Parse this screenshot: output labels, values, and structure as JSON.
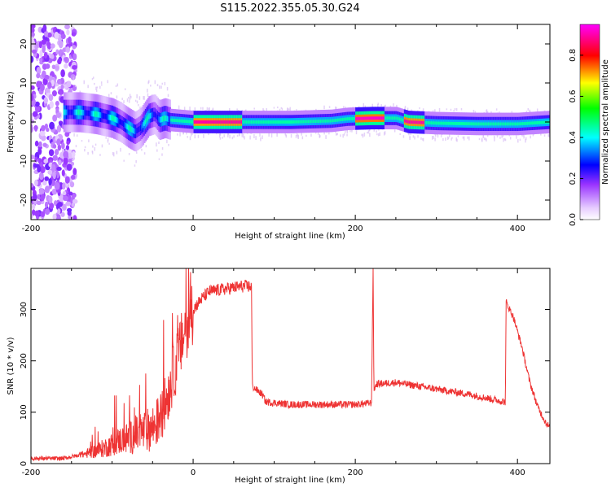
{
  "figure": {
    "title": "S115.2022.355.05.30.G24"
  },
  "chart_data": [
    {
      "type": "heatmap",
      "xlabel": "Height of straight line (km)",
      "ylabel": "Frequency (Hz)",
      "xlim": [
        -200,
        440
      ],
      "ylim": [
        -25,
        25
      ],
      "xticks": [
        -200,
        0,
        200,
        400
      ],
      "yticks": [
        -20,
        -10,
        0,
        10,
        20
      ],
      "colorbar": {
        "label": "Normalized spectral amplitude",
        "range": [
          0,
          0.95
        ],
        "ticks": [
          0.0,
          0.2,
          0.4,
          0.6,
          0.8
        ],
        "tick_labels": [
          "0.0",
          "0.2",
          "0.4",
          "0.6",
          "0.8"
        ],
        "colormap": [
          "#ffffff",
          "#e6ccff",
          "#9933ff",
          "#0000ff",
          "#00ffff",
          "#00ff00",
          "#ffff00",
          "#ff0000",
          "#ff00ff"
        ]
      },
      "ridge": [
        {
          "x": -160,
          "y": 2.5
        },
        {
          "x": -140,
          "y": 2.5
        },
        {
          "x": -120,
          "y": 2.0
        },
        {
          "x": -100,
          "y": 1.0
        },
        {
          "x": -90,
          "y": 0.0
        },
        {
          "x": -80,
          "y": -1.5
        },
        {
          "x": -72,
          "y": -2.5
        },
        {
          "x": -65,
          "y": -1.5
        },
        {
          "x": -55,
          "y": 1.5
        },
        {
          "x": -48,
          "y": 2.0
        },
        {
          "x": -42,
          "y": 0.5
        },
        {
          "x": -35,
          "y": 1.0
        },
        {
          "x": -28,
          "y": 0.5
        },
        {
          "x": 0,
          "y": 0.0
        },
        {
          "x": 60,
          "y": 0.0
        },
        {
          "x": 120,
          "y": 0.0
        },
        {
          "x": 170,
          "y": 0.3
        },
        {
          "x": 190,
          "y": 0.8
        },
        {
          "x": 220,
          "y": 1.0
        },
        {
          "x": 250,
          "y": 1.0
        },
        {
          "x": 265,
          "y": 0.0
        },
        {
          "x": 300,
          "y": -0.3
        },
        {
          "x": 350,
          "y": -0.5
        },
        {
          "x": 400,
          "y": -0.5
        },
        {
          "x": 440,
          "y": 0.0
        }
      ],
      "peak_amplitude_regions": [
        {
          "x_range": [
            0,
            60
          ],
          "amplitude": 0.9
        },
        {
          "x_range": [
            200,
            235
          ],
          "amplitude": 0.92
        },
        {
          "x_range": [
            260,
            285
          ],
          "amplitude": 0.9
        }
      ]
    },
    {
      "type": "line",
      "xlabel": "Height of straight line (km)",
      "ylabel": "SNR (10 * v/v)",
      "xlim": [
        -200,
        440
      ],
      "ylim": [
        0,
        380
      ],
      "xticks": [
        -200,
        0,
        200,
        400
      ],
      "yticks": [
        0,
        100,
        200,
        300
      ],
      "color": "#ee3333",
      "series": [
        {
          "x": [
            -200,
            -160,
            -130,
            -110,
            -90,
            -70,
            -50,
            -40,
            -30,
            -20,
            -10,
            0,
            10,
            20,
            40,
            60,
            72,
            73,
            85,
            90,
            120,
            160,
            200,
            220,
            222,
            223,
            225,
            226,
            250,
            300,
            340,
            370,
            385,
            386,
            395,
            405,
            415,
            425,
            435,
            440
          ],
          "y": [
            10,
            10,
            20,
            30,
            45,
            55,
            70,
            90,
            140,
            200,
            260,
            300,
            320,
            335,
            340,
            345,
            345,
            150,
            135,
            120,
            115,
            115,
            115,
            118,
            380,
            145,
            150,
            155,
            158,
            145,
            135,
            125,
            120,
            315,
            285,
            230,
            160,
            110,
            80,
            70
          ]
        }
      ]
    }
  ]
}
